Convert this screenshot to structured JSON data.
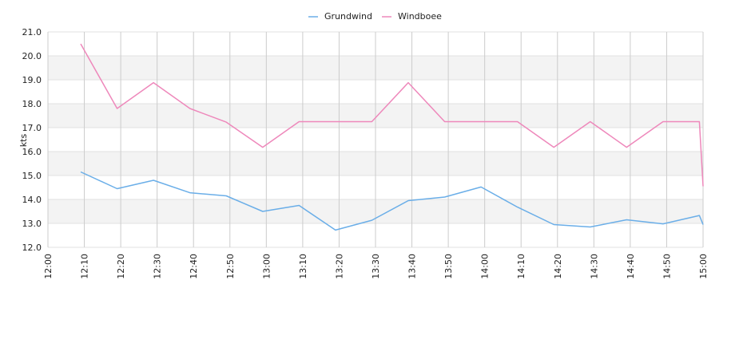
{
  "chart_data": {
    "type": "line",
    "title": "",
    "xlabel": "",
    "ylabel": "kts",
    "x_ticks": [
      "12:00",
      "12:10",
      "12:20",
      "12:30",
      "12:40",
      "12:50",
      "13:00",
      "13:10",
      "13:20",
      "13:30",
      "13:40",
      "13:50",
      "14:00",
      "14:10",
      "14:20",
      "14:30",
      "14:40",
      "14:50",
      "15:00"
    ],
    "y_ticks": [
      "12.0",
      "13.0",
      "14.0",
      "15.0",
      "16.0",
      "17.0",
      "18.0",
      "19.0",
      "20.0",
      "21.0"
    ],
    "xlim": [
      "12:00",
      "15:00"
    ],
    "ylim": [
      12.0,
      21.0
    ],
    "grid": true,
    "legend_position": "top-center",
    "series": [
      {
        "name": "Grundwind",
        "color": "#6aaee8",
        "points": [
          [
            "12:09",
            15.15
          ],
          [
            "12:19",
            14.45
          ],
          [
            "12:29",
            14.8
          ],
          [
            "12:39",
            14.28
          ],
          [
            "12:49",
            14.15
          ],
          [
            "12:59",
            13.5
          ],
          [
            "13:09",
            13.75
          ],
          [
            "13:19",
            12.72
          ],
          [
            "13:29",
            13.13
          ],
          [
            "13:39",
            13.95
          ],
          [
            "13:49",
            14.1
          ],
          [
            "13:59",
            14.52
          ],
          [
            "14:09",
            13.68
          ],
          [
            "14:19",
            12.95
          ],
          [
            "14:29",
            12.85
          ],
          [
            "14:39",
            13.15
          ],
          [
            "14:49",
            12.98
          ],
          [
            "14:59",
            13.33
          ],
          [
            "15:00",
            12.95
          ]
        ]
      },
      {
        "name": "Windboee",
        "color": "#ee88bb",
        "points": [
          [
            "12:09",
            20.5
          ],
          [
            "12:19",
            17.8
          ],
          [
            "12:29",
            18.88
          ],
          [
            "12:39",
            17.8
          ],
          [
            "12:49",
            17.23
          ],
          [
            "12:59",
            16.18
          ],
          [
            "13:09",
            17.25
          ],
          [
            "13:19",
            17.25
          ],
          [
            "13:29",
            17.25
          ],
          [
            "13:39",
            18.88
          ],
          [
            "13:49",
            17.25
          ],
          [
            "13:59",
            17.25
          ],
          [
            "14:09",
            17.25
          ],
          [
            "14:19",
            16.18
          ],
          [
            "14:29",
            17.25
          ],
          [
            "14:39",
            16.18
          ],
          [
            "14:49",
            17.25
          ],
          [
            "14:59",
            17.25
          ],
          [
            "15:00",
            14.55
          ]
        ]
      }
    ]
  }
}
